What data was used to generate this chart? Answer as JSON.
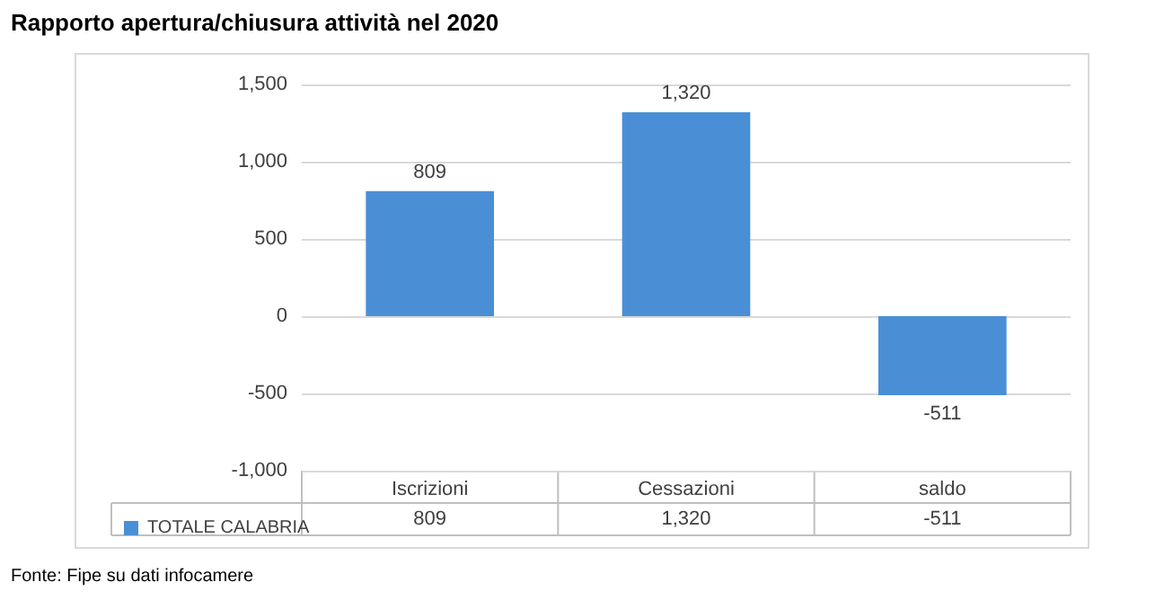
{
  "chart_data": {
    "type": "bar",
    "title": "Rapporto apertura/chiusura attività nel 2020",
    "categories": [
      "Iscrizioni",
      "Cessazioni",
      "saldo"
    ],
    "series": [
      {
        "name": "TOTALE CALABRIA",
        "color": "#4a8fd6",
        "values": [
          809,
          1320,
          -511
        ],
        "value_labels": [
          "809",
          "1,320",
          "-511"
        ]
      }
    ],
    "ylim": [
      -1000,
      1500
    ],
    "yticks": [
      {
        "value": -1000,
        "label": "-1,000"
      },
      {
        "value": -500,
        "label": "-500"
      },
      0,
      500,
      {
        "value": 1000,
        "label": "1,000"
      },
      {
        "value": 1500,
        "label": "1,500"
      }
    ],
    "grid": "y",
    "legend": "bottom",
    "annotations": [
      "Fonte: Fipe su dati infocamere"
    ]
  }
}
